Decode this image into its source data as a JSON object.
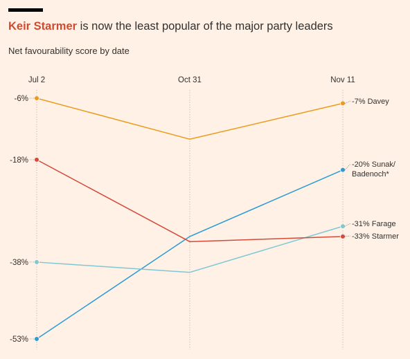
{
  "title": {
    "highlight": "Keir Starmer",
    "rest": " is now the least popular of the major party leaders"
  },
  "subtitle": "Net favourability score by date",
  "chart_data": {
    "type": "line",
    "title": "Keir Starmer is now the least popular of the major party leaders",
    "subtitle": "Net favourability score by date",
    "categories": [
      "Jul 2",
      "Oct 31",
      "Nov 11"
    ],
    "y_ticks": [
      -6,
      -18,
      -38,
      -53
    ],
    "y_tick_labels": [
      "-6%",
      "-18%",
      "-38%",
      "-53%"
    ],
    "ylim": [
      -53,
      -6
    ],
    "grid": "vertical dotted at each category",
    "series": [
      {
        "name": "Davey",
        "values": [
          -6,
          -14,
          -7
        ],
        "color": "#eb9b1c",
        "end_label": [
          "-7% Davey"
        ]
      },
      {
        "name": "Sunak/Badenoch",
        "values": [
          -53,
          -33,
          -20
        ],
        "color": "#2b9bd6",
        "end_label": [
          "-20% Sunak/",
          "Badenoch*"
        ]
      },
      {
        "name": "Farage",
        "values": [
          -38,
          -40,
          -31
        ],
        "color": "#7ec8d4",
        "end_label": [
          "-31% Farage"
        ]
      },
      {
        "name": "Starmer",
        "values": [
          -18,
          -34,
          -33
        ],
        "color": "#d44a3a",
        "end_label": [
          "-33% Starmer"
        ]
      }
    ]
  }
}
